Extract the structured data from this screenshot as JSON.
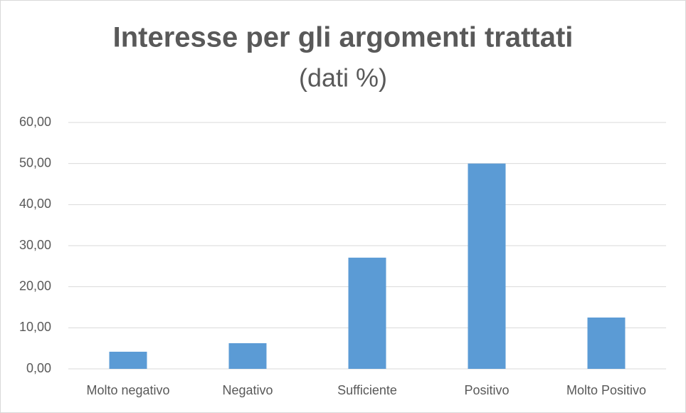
{
  "chart_data": {
    "type": "bar",
    "title": "Interesse per gli argomenti trattati",
    "subtitle": "(dati %)",
    "categories": [
      "Molto negativo",
      "Negativo",
      "Sufficiente",
      "Positivo",
      "Molto Positivo"
    ],
    "values": [
      4.17,
      6.25,
      27.08,
      50,
      12.5
    ],
    "color": "#5b9bd5",
    "ylim": [
      0,
      60
    ],
    "yticks": [
      {
        "value": 0,
        "label": "0,00"
      },
      {
        "value": 10,
        "label": "10,00"
      },
      {
        "value": 20,
        "label": "20,00"
      },
      {
        "value": 30,
        "label": "30,00"
      },
      {
        "value": 40,
        "label": "40,00"
      },
      {
        "value": 50,
        "label": "50,00"
      },
      {
        "value": 60,
        "label": "60,00"
      }
    ],
    "grid": true
  }
}
